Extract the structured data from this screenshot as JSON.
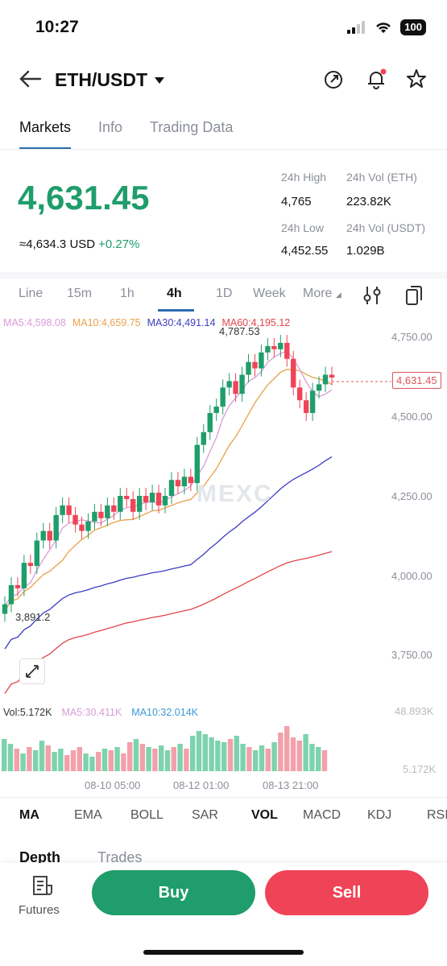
{
  "status": {
    "time": "10:27",
    "battery": "100"
  },
  "header": {
    "pair": "ETH/USDT"
  },
  "tabs": [
    "Markets",
    "Info",
    "Trading Data"
  ],
  "price": {
    "last": "4,631.45",
    "usd": "≈4,634.3 USD",
    "change": "+0.27%"
  },
  "stats": {
    "high_label": "24h High",
    "high_value": "4,765",
    "vol_eth_label": "24h Vol (ETH)",
    "vol_eth_value": "223.82K",
    "low_label": "24h Low",
    "low_value": "4,452.55",
    "vol_usdt_label": "24h Vol (USDT)",
    "vol_usdt_value": "1.029B"
  },
  "timeframes": [
    "Line",
    "15m",
    "1h",
    "4h",
    "1D",
    "Week",
    "More"
  ],
  "ma_legend": {
    "ma5": "MA5:4,598.08",
    "ma10": "MA10:4,659.75",
    "ma30": "MA30:4,491.14",
    "ma60": "MA60:4,195.12"
  },
  "chart": {
    "high_marker": "4,787.53",
    "low_marker": "3,891.2",
    "price_tag": "4,631.45",
    "watermark": "MEXC",
    "y_ticks": [
      "4,750.00",
      "4,500.00",
      "4,250.00",
      "4,000.00",
      "3,750.00"
    ],
    "x_ticks": [
      "08-10 05:00",
      "08-12 01:00",
      "08-13 21:00"
    ],
    "vol_ticks": [
      "48.893K",
      "5.172K"
    ],
    "colors": {
      "up": "#1f9d6b",
      "down": "#ef4457",
      "ma5": "#d99cd6",
      "ma10": "#e8a04a",
      "ma30": "#3c3cc2",
      "ma60": "#e0454e"
    }
  },
  "vol_legend": {
    "vol": "Vol:5.172K",
    "ma5": "MA5:30.411K",
    "ma10": "MA10:32.014K"
  },
  "indicators": [
    "MA",
    "EMA",
    "BOLL",
    "SAR",
    "VOL",
    "MACD",
    "KDJ",
    "RSI"
  ],
  "bottom_tabs": [
    "Depth",
    "Trades"
  ],
  "actions": {
    "futures": "Futures",
    "buy": "Buy",
    "sell": "Sell"
  }
}
